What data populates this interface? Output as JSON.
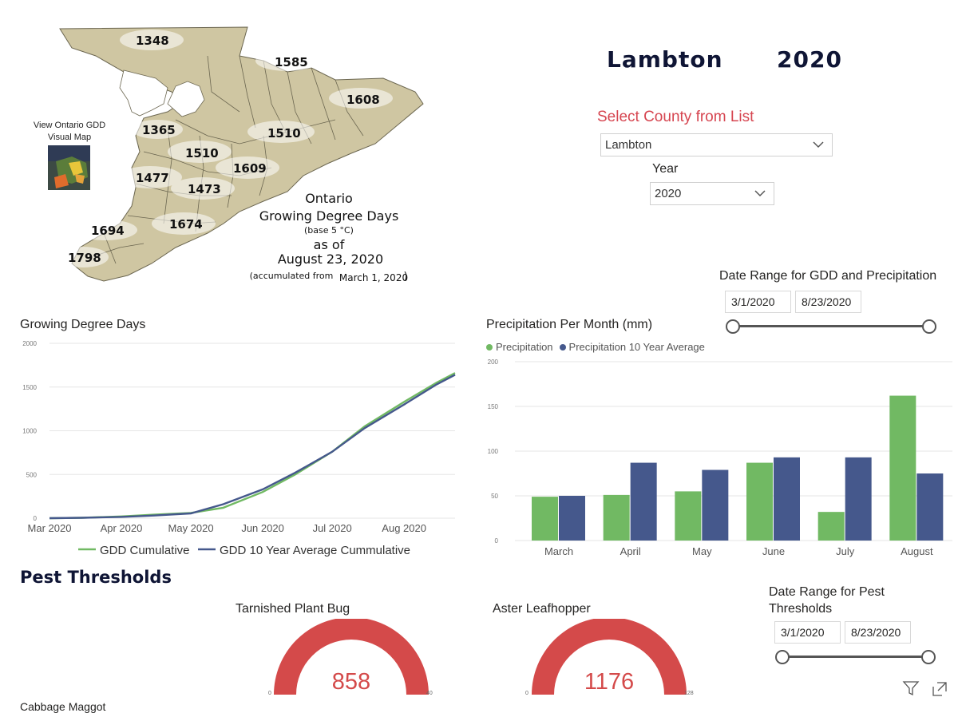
{
  "map": {
    "thumb_text": "View Ontario GDD Visual Map",
    "labels": [
      "1348",
      "1585",
      "1608",
      "1365",
      "1510",
      "1510",
      "1609",
      "1477",
      "1473",
      "1694",
      "1674",
      "1798"
    ],
    "title_line1": "Ontario",
    "title_line2": "Growing Degree Days",
    "title_base": "(base 5 °C)",
    "title_asof": "as of",
    "title_date": "August 23, 2020",
    "title_accum": "(accumulated from",
    "title_accum_date": "March 1, 2020",
    "title_accum_close": ")"
  },
  "header": {
    "county": "Lambton",
    "year": "2020"
  },
  "filters": {
    "select_label": "Select County from List",
    "county_value": "Lambton",
    "year_label": "Year",
    "year_value": "2020",
    "date_range_label": "Date Range for GDD and Precipitation",
    "date_start": "3/1/2020",
    "date_end": "8/23/2020",
    "pest_range_label_1": "Date Range for Pest",
    "pest_range_label_2": "Thresholds",
    "pest_start": "3/1/2020",
    "pest_end": "8/23/2020"
  },
  "gdd_chart": {
    "title": "Growing Degree Days",
    "legend_1": "GDD Cumulative",
    "legend_2": "GDD 10 Year Average Cummulative"
  },
  "precip_chart": {
    "title": "Precipitation Per Month (mm)",
    "legend_1": "Precipitation",
    "legend_2": "Precipitation 10 Year Average"
  },
  "pests": {
    "section_title": "Pest Thresholds",
    "gauge1_title": "Tarnished Plant Bug",
    "gauge1_value": "858",
    "gauge1_min": "0",
    "gauge1_max": "40",
    "gauge2_title": "Aster Leafhopper",
    "gauge2_value": "1176",
    "gauge2_min": "0",
    "gauge2_max": "128",
    "cutoff_text": "Cabbage Maggot"
  },
  "colors": {
    "green": "#71b963",
    "navy": "#45588c",
    "gauge_red": "#d44a4a",
    "title_red": "#d64550"
  },
  "icons": [
    "filter-icon",
    "focus-mode-icon",
    "chevron-down-icon"
  ],
  "chart_data": [
    {
      "type": "line",
      "title": "Growing Degree Days",
      "x_ticks": [
        "Mar 2020",
        "Apr 2020",
        "May 2020",
        "Jun 2020",
        "Jul 2020",
        "Aug 2020"
      ],
      "y_ticks": [
        0,
        500,
        1000,
        1500,
        2000
      ],
      "ylim": [
        0,
        2000
      ],
      "x": [
        "2020-03-01",
        "2020-03-15",
        "2020-04-01",
        "2020-04-15",
        "2020-05-01",
        "2020-05-15",
        "2020-06-01",
        "2020-06-15",
        "2020-07-01",
        "2020-07-15",
        "2020-08-01",
        "2020-08-15",
        "2020-08-23"
      ],
      "series": [
        {
          "name": "GDD Cumulative",
          "values": [
            0,
            5,
            20,
            40,
            60,
            120,
            300,
            500,
            760,
            1050,
            1330,
            1550,
            1660
          ]
        },
        {
          "name": "GDD 10 Year Average Cummulative",
          "values": [
            0,
            5,
            15,
            30,
            55,
            160,
            330,
            520,
            760,
            1030,
            1300,
            1530,
            1640
          ]
        }
      ],
      "legend": "bottom"
    },
    {
      "type": "bar",
      "title": "Precipitation Per Month (mm)",
      "categories": [
        "March",
        "April",
        "May",
        "June",
        "July",
        "August"
      ],
      "y_ticks": [
        0,
        50,
        100,
        150,
        200
      ],
      "ylim": [
        0,
        200
      ],
      "series": [
        {
          "name": "Precipitation",
          "values": [
            49,
            51,
            55,
            87,
            32,
            162
          ]
        },
        {
          "name": "Precipitation 10 Year Average",
          "values": [
            50,
            87,
            79,
            93,
            93,
            75
          ]
        }
      ],
      "legend": "top-left"
    }
  ]
}
